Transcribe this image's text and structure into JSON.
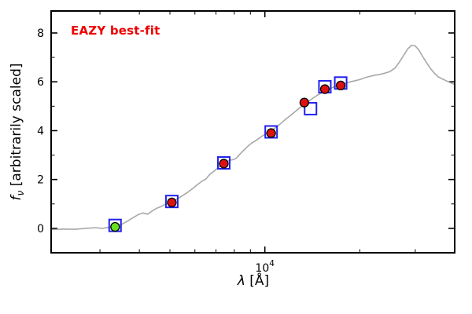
{
  "figure": {
    "background": "#ffffff"
  },
  "chart_data": {
    "type": "line",
    "title": "",
    "annotation": "EAZY best-fit",
    "annotation_color": "#ee0000",
    "xlabel": "λ [Å]",
    "xlabel_lambda": "λ",
    "xlabel_rest": " [Å]",
    "ylabel": "fν [arbitrarily scaled]",
    "ylabel_f": "f",
    "ylabel_sub": "ν",
    "ylabel_rest": " [arbitrarily scaled]",
    "xscale": "log",
    "xlim": [
      2100,
      40000
    ],
    "ylim": [
      -1.0,
      8.9
    ],
    "grid": false,
    "legend": "none",
    "xticks_major": [
      {
        "value": 10000,
        "base": "10",
        "exp": "4"
      }
    ],
    "xticks_minor": [
      3000,
      4000,
      5000,
      6000,
      7000,
      8000,
      9000,
      20000,
      30000
    ],
    "yticks_major": [
      0,
      2,
      4,
      6,
      8
    ],
    "yticks_minor": [
      1,
      3,
      5,
      7
    ],
    "axis_color": "#000000",
    "series": [
      {
        "name": "best-fit-spectrum",
        "kind": "line",
        "color": "#a8a8a8",
        "width": 1.6,
        "points": [
          [
            2100,
            -0.05
          ],
          [
            2300,
            -0.03
          ],
          [
            2500,
            -0.04
          ],
          [
            2700,
            0.0
          ],
          [
            2900,
            0.03
          ],
          [
            3050,
            0.0
          ],
          [
            3200,
            0.04
          ],
          [
            3350,
            0.08
          ],
          [
            3500,
            0.15
          ],
          [
            3650,
            0.28
          ],
          [
            3800,
            0.42
          ],
          [
            3950,
            0.55
          ],
          [
            4100,
            0.63
          ],
          [
            4250,
            0.58
          ],
          [
            4400,
            0.72
          ],
          [
            4550,
            0.83
          ],
          [
            4700,
            0.9
          ],
          [
            4850,
            1.0
          ],
          [
            5000,
            1.05
          ],
          [
            5150,
            1.13
          ],
          [
            5300,
            1.22
          ],
          [
            5500,
            1.35
          ],
          [
            5700,
            1.48
          ],
          [
            5900,
            1.63
          ],
          [
            6100,
            1.78
          ],
          [
            6300,
            1.92
          ],
          [
            6500,
            2.02
          ],
          [
            6700,
            2.22
          ],
          [
            6900,
            2.34
          ],
          [
            7100,
            2.48
          ],
          [
            7300,
            2.58
          ],
          [
            7500,
            2.7
          ],
          [
            7700,
            2.78
          ],
          [
            7900,
            2.81
          ],
          [
            8100,
            2.86
          ],
          [
            8300,
            3.01
          ],
          [
            8500,
            3.15
          ],
          [
            8700,
            3.28
          ],
          [
            8900,
            3.4
          ],
          [
            9100,
            3.5
          ],
          [
            9300,
            3.57
          ],
          [
            9500,
            3.65
          ],
          [
            9800,
            3.78
          ],
          [
            10100,
            3.88
          ],
          [
            10400,
            3.98
          ],
          [
            10800,
            4.12
          ],
          [
            11200,
            4.28
          ],
          [
            11600,
            4.45
          ],
          [
            12000,
            4.6
          ],
          [
            12400,
            4.75
          ],
          [
            12800,
            4.9
          ],
          [
            13200,
            5.02
          ],
          [
            13600,
            5.15
          ],
          [
            14000,
            5.27
          ],
          [
            14400,
            5.38
          ],
          [
            14800,
            5.48
          ],
          [
            15200,
            5.55
          ],
          [
            15600,
            5.65
          ],
          [
            16000,
            5.72
          ],
          [
            16500,
            5.78
          ],
          [
            17000,
            5.85
          ],
          [
            17500,
            5.9
          ],
          [
            18000,
            5.94
          ],
          [
            18700,
            6.0
          ],
          [
            19400,
            6.05
          ],
          [
            20100,
            6.1
          ],
          [
            20800,
            6.17
          ],
          [
            21500,
            6.22
          ],
          [
            22300,
            6.27
          ],
          [
            23100,
            6.3
          ],
          [
            24000,
            6.35
          ],
          [
            24900,
            6.42
          ],
          [
            25800,
            6.55
          ],
          [
            26700,
            6.8
          ],
          [
            27600,
            7.1
          ],
          [
            28400,
            7.35
          ],
          [
            29200,
            7.5
          ],
          [
            30000,
            7.47
          ],
          [
            30800,
            7.3
          ],
          [
            31600,
            7.05
          ],
          [
            32500,
            6.8
          ],
          [
            33500,
            6.55
          ],
          [
            34500,
            6.35
          ],
          [
            35500,
            6.2
          ],
          [
            36500,
            6.12
          ],
          [
            37500,
            6.05
          ],
          [
            38500,
            5.98
          ],
          [
            39500,
            5.92
          ],
          [
            40000,
            5.9
          ]
        ]
      },
      {
        "name": "model-photometry-squares",
        "kind": "square",
        "color": "#2222ee",
        "size": 15,
        "stroke_width": 2,
        "points": [
          [
            3350,
            0.12
          ],
          [
            5070,
            1.1
          ],
          [
            7410,
            2.68
          ],
          [
            10470,
            3.95
          ],
          [
            13960,
            4.9
          ],
          [
            15500,
            5.8
          ],
          [
            17400,
            5.95
          ]
        ]
      },
      {
        "name": "observed-photometry-circles",
        "kind": "circle",
        "fill": "#dd1111",
        "edge": "#000000",
        "r": 5.5,
        "points": [
          [
            5070,
            1.06
          ],
          [
            7410,
            2.65
          ],
          [
            10470,
            3.9
          ],
          [
            13340,
            5.15
          ],
          [
            15500,
            5.7
          ],
          [
            17400,
            5.85
          ]
        ]
      },
      {
        "name": "flagged-photometry-circle",
        "kind": "circle",
        "fill": "#66e022",
        "edge": "#000000",
        "r": 5.5,
        "points": [
          [
            3350,
            0.06
          ]
        ]
      }
    ]
  }
}
